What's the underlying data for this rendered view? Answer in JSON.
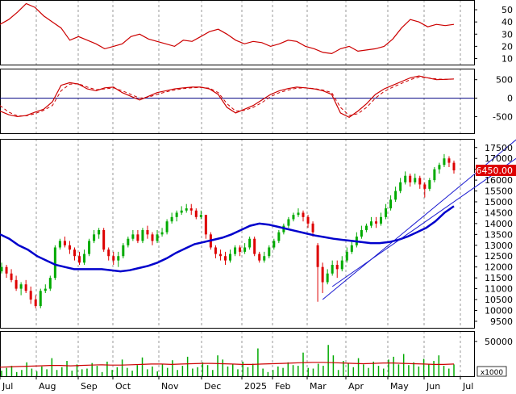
{
  "chart_data": {
    "type": "stock-multi-panel",
    "x_labels": [
      "Jul",
      "Aug",
      "Sep",
      "Oct",
      "Nov",
      "Dec",
      "2025",
      "Feb",
      "Mar",
      "Apr",
      "May",
      "Jun",
      "Jul"
    ],
    "last_price_label": "16450.00",
    "volume_unit": "x1000",
    "colors": {
      "up": "#00aa00",
      "down": "#dd0000",
      "ma": "#0000cc",
      "osc": "#cc0000",
      "zero": "#000080",
      "channel": "#1a1ad0",
      "grid": "#999999",
      "price_tag": "#dd0000"
    },
    "panels": [
      {
        "name": "rsi",
        "yticks": [
          50,
          40,
          30,
          20,
          10
        ],
        "ylim": [
          5,
          58
        ],
        "series": [
          {
            "values": [
              38,
              42,
              48,
              55,
              52,
              45,
              40,
              35,
              25,
              28,
              25,
              22,
              18,
              20,
              22,
              28,
              30,
              26,
              24,
              22,
              20,
              25,
              24,
              28,
              32,
              34,
              30,
              25,
              22,
              24,
              23,
              20,
              22,
              25,
              24,
              20,
              18,
              15,
              14,
              18,
              20,
              16,
              17,
              18,
              20,
              26,
              35,
              42,
              40,
              36,
              38,
              37,
              38
            ]
          }
        ]
      },
      {
        "name": "macd",
        "yticks": [
          500,
          0,
          -500
        ],
        "ylim": [
          -950,
          800
        ],
        "zero_line": 0,
        "series": [
          {
            "line": "solid",
            "values": [
              -350,
              -450,
              -500,
              -470,
              -380,
              -300,
              -100,
              350,
              420,
              380,
              250,
              200,
              280,
              300,
              150,
              50,
              -50,
              50,
              150,
              200,
              250,
              280,
              300,
              300,
              250,
              100,
              -250,
              -400,
              -300,
              -200,
              -50,
              100,
              200,
              260,
              300,
              280,
              250,
              200,
              100,
              -400,
              -520,
              -350,
              -150,
              100,
              250,
              350,
              450,
              550,
              600,
              550,
              500,
              510,
              520
            ]
          },
          {
            "line": "dashed",
            "values": [
              -200,
              -380,
              -480,
              -480,
              -420,
              -330,
              -200,
              200,
              380,
              390,
              300,
              230,
              250,
              280,
              200,
              100,
              0,
              30,
              100,
              170,
              220,
              260,
              280,
              290,
              270,
              150,
              -150,
              -350,
              -330,
              -250,
              -120,
              40,
              150,
              220,
              270,
              280,
              260,
              220,
              150,
              -250,
              -470,
              -420,
              -250,
              0,
              180,
              300,
              400,
              500,
              570,
              550,
              520,
              510,
              515
            ]
          }
        ]
      },
      {
        "name": "price",
        "yticks": [
          17500,
          17000,
          16500,
          16000,
          15500,
          15000,
          14500,
          14000,
          13500,
          13000,
          12500,
          12000,
          11500,
          11000,
          10500,
          10000,
          9500
        ],
        "ylim": [
          9200,
          17900
        ],
        "candles": [
          [
            11800,
            12000,
            12200,
            11700
          ],
          [
            12000,
            11700,
            12100,
            11500
          ],
          [
            11700,
            11400,
            11900,
            11300
          ],
          [
            11400,
            11000,
            11600,
            10900
          ],
          [
            11000,
            11200,
            11300,
            10700
          ],
          [
            11200,
            10900,
            11400,
            10800
          ],
          [
            10900,
            10500,
            11100,
            10300
          ],
          [
            10500,
            10200,
            10700,
            10100
          ],
          [
            10200,
            10900,
            11000,
            10100
          ],
          [
            10900,
            11000,
            11200,
            10800
          ],
          [
            11000,
            11500,
            11600,
            10900
          ],
          [
            11500,
            12900,
            13000,
            11400
          ],
          [
            12900,
            13200,
            13300,
            12800
          ],
          [
            13200,
            13000,
            13400,
            12900
          ],
          [
            13000,
            12800,
            13200,
            12600
          ],
          [
            12800,
            12500,
            12900,
            12300
          ],
          [
            12500,
            12200,
            12700,
            12100
          ],
          [
            12200,
            12600,
            12800,
            12100
          ],
          [
            12600,
            13200,
            13300,
            12500
          ],
          [
            13200,
            13500,
            13700,
            13100
          ],
          [
            13500,
            13700,
            13800,
            13300
          ],
          [
            13700,
            12800,
            13800,
            12700
          ],
          [
            12800,
            12500,
            12900,
            12300
          ],
          [
            12500,
            12300,
            12700,
            12100
          ],
          [
            12300,
            12500,
            12700,
            12000
          ],
          [
            12500,
            13000,
            13100,
            12400
          ],
          [
            13000,
            13300,
            13400,
            12900
          ],
          [
            13300,
            13500,
            13700,
            13200
          ],
          [
            13500,
            13200,
            13700,
            13100
          ],
          [
            13200,
            13700,
            13800,
            13100
          ],
          [
            13700,
            13500,
            13900,
            13300
          ],
          [
            13500,
            13200,
            13600,
            13000
          ],
          [
            13200,
            13500,
            13700,
            13100
          ],
          [
            13500,
            13600,
            13800,
            13400
          ],
          [
            13600,
            14100,
            14200,
            13500
          ],
          [
            14100,
            14300,
            14500,
            14000
          ],
          [
            14300,
            14500,
            14600,
            14100
          ],
          [
            14500,
            14600,
            14800,
            14400
          ],
          [
            14600,
            14700,
            14900,
            14500
          ],
          [
            14700,
            14600,
            14900,
            14400
          ],
          [
            14600,
            14300,
            14700,
            14200
          ],
          [
            14300,
            14400,
            14600,
            14200
          ],
          [
            14400,
            13500,
            14400,
            13300
          ],
          [
            13500,
            12900,
            13600,
            12800
          ],
          [
            12900,
            12600,
            13000,
            12400
          ],
          [
            12600,
            12500,
            12800,
            12300
          ],
          [
            12500,
            12300,
            12700,
            12100
          ],
          [
            12300,
            12600,
            12800,
            12200
          ],
          [
            12600,
            12900,
            13000,
            12500
          ],
          [
            12900,
            12700,
            13000,
            12500
          ],
          [
            12700,
            12900,
            13100,
            12600
          ],
          [
            12900,
            13300,
            13400,
            12800
          ],
          [
            13300,
            12600,
            13400,
            12500
          ],
          [
            12600,
            12300,
            12700,
            12200
          ],
          [
            12300,
            12500,
            12700,
            12200
          ],
          [
            12500,
            12900,
            13000,
            12400
          ],
          [
            12900,
            13200,
            13300,
            12800
          ],
          [
            13200,
            13600,
            13700,
            13100
          ],
          [
            13600,
            13900,
            14000,
            13500
          ],
          [
            13900,
            14200,
            14300,
            13800
          ],
          [
            14200,
            14400,
            14500,
            14100
          ],
          [
            14400,
            14500,
            14700,
            14300
          ],
          [
            14500,
            14300,
            14600,
            14100
          ],
          [
            14300,
            14000,
            14400,
            13800
          ],
          [
            14000,
            13600,
            14100,
            13400
          ],
          [
            13000,
            12000,
            13100,
            10400
          ],
          [
            12000,
            11300,
            12200,
            10800
          ],
          [
            11300,
            11700,
            11900,
            11200
          ],
          [
            11700,
            12100,
            12300,
            11600
          ],
          [
            12100,
            11900,
            12300,
            11500
          ],
          [
            11900,
            12300,
            12500,
            11800
          ],
          [
            12300,
            12700,
            12900,
            12200
          ],
          [
            12700,
            13000,
            13200,
            12600
          ],
          [
            13000,
            13400,
            13600,
            12900
          ],
          [
            13400,
            13700,
            13900,
            13300
          ],
          [
            13700,
            13900,
            14000,
            13600
          ],
          [
            13900,
            14100,
            14300,
            13800
          ],
          [
            14100,
            14000,
            14300,
            13800
          ],
          [
            14000,
            14300,
            14500,
            13900
          ],
          [
            14300,
            14700,
            14900,
            14200
          ],
          [
            14700,
            15100,
            15300,
            14600
          ],
          [
            15100,
            15500,
            15700,
            15000
          ],
          [
            15500,
            15900,
            16100,
            15400
          ],
          [
            15900,
            16200,
            16400,
            15800
          ],
          [
            16200,
            15900,
            16300,
            15700
          ],
          [
            15900,
            16100,
            16300,
            15800
          ],
          [
            16100,
            15800,
            16200,
            15600
          ],
          [
            15800,
            15600,
            15900,
            15200
          ],
          [
            15600,
            16000,
            16100,
            15500
          ],
          [
            16000,
            16500,
            16600,
            15900
          ],
          [
            16500,
            16700,
            16800,
            16300
          ],
          [
            16700,
            17000,
            17200,
            16600
          ],
          [
            17000,
            16800,
            17100,
            16600
          ],
          [
            16800,
            16450,
            16900,
            16300
          ]
        ],
        "ma": [
          13500,
          13300,
          13000,
          12800,
          12500,
          12300,
          12100,
          12000,
          11900,
          11900,
          11900,
          11900,
          11850,
          11800,
          11850,
          11950,
          12050,
          12200,
          12400,
          12650,
          12850,
          13050,
          13150,
          13250,
          13350,
          13500,
          13700,
          13900,
          14000,
          13950,
          13850,
          13750,
          13650,
          13550,
          13450,
          13380,
          13300,
          13250,
          13200,
          13150,
          13100,
          13100,
          13150,
          13250,
          13400,
          13600,
          13800,
          14100,
          14500,
          14800
        ],
        "channel": [
          {
            "from": [
              10500,
              66
            ],
            "to": [
              17900,
              106
            ]
          },
          {
            "from": [
              11100,
              68
            ],
            "to": [
              17500,
              109
            ]
          }
        ]
      },
      {
        "name": "volume",
        "yticks": [
          50000
        ],
        "ylim": [
          0,
          65000
        ],
        "values": [
          8000,
          12000,
          15000,
          6000,
          9000,
          20000,
          11000,
          7000,
          14000,
          10000,
          26000,
          9000,
          13000,
          22000,
          8000,
          17000,
          10000,
          11000,
          19000,
          15000,
          6000,
          21000,
          9000,
          13000,
          24000,
          12000,
          8000,
          16000,
          27000,
          10000,
          14000,
          7000,
          18000,
          12000,
          23000,
          9000,
          15000,
          28000,
          11000,
          13000,
          20000,
          16000,
          9000,
          30000,
          24000,
          14000,
          17000,
          10000,
          21000,
          13000,
          18000,
          40000,
          11000,
          6000,
          9000,
          14000,
          12000,
          20000,
          16000,
          15000,
          34000,
          12000,
          11000,
          18000,
          15000,
          45000,
          30000,
          9000,
          22000,
          19000,
          13000,
          26000,
          17000,
          12000,
          21000,
          15000,
          11000,
          24000,
          28000,
          17000,
          32000,
          16000,
          20000,
          14000,
          25000,
          18000,
          22000,
          30000,
          15000,
          11000,
          17000
        ],
        "ma": [
          13000,
          13500,
          14000,
          14500,
          15000,
          15500,
          15500,
          15000,
          15500,
          16000,
          16500,
          16000,
          16000,
          16500,
          17000,
          17500,
          17500,
          17000,
          17500,
          18000,
          18500,
          18500,
          18000,
          17500,
          17000,
          17000,
          17500,
          18000,
          18500,
          19000,
          19500,
          20000,
          20000,
          19500,
          19000,
          18500,
          18000,
          18500,
          19000,
          19000,
          18500,
          18000,
          17500,
          17000,
          17000,
          17500
        ]
      }
    ]
  }
}
